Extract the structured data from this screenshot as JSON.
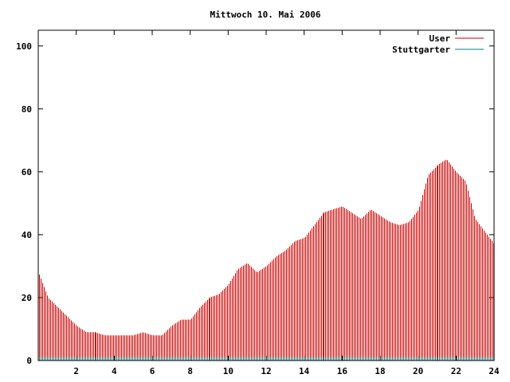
{
  "chart_data": {
    "type": "bar",
    "title": "Mittwoch 10. Mai 2006",
    "xlabel": "",
    "ylabel": "",
    "xlim": [
      0,
      24
    ],
    "ylim": [
      0,
      105
    ],
    "x_ticks": [
      "2",
      "4",
      "6",
      "8",
      "10",
      "12",
      "14",
      "16",
      "18",
      "20",
      "22",
      "24"
    ],
    "y_ticks": [
      "0",
      "20",
      "40",
      "60",
      "80",
      "100"
    ],
    "grid": false,
    "legend_position": "top-right",
    "bin_minutes": 5,
    "series": [
      {
        "name": "User",
        "color": "#cc0000",
        "x_hours": [
          0.0,
          0.5,
          1.0,
          1.5,
          2.0,
          2.5,
          3.0,
          3.5,
          4.0,
          4.5,
          5.0,
          5.5,
          6.0,
          6.5,
          7.0,
          7.5,
          8.0,
          8.5,
          9.0,
          9.5,
          10.0,
          10.5,
          11.0,
          11.5,
          12.0,
          12.5,
          13.0,
          13.5,
          14.0,
          14.5,
          15.0,
          15.5,
          16.0,
          16.5,
          17.0,
          17.5,
          18.0,
          18.5,
          19.0,
          19.5,
          20.0,
          20.5,
          21.0,
          21.5,
          22.0,
          22.5,
          23.0,
          23.5,
          24.0
        ],
        "values": [
          28,
          20,
          17,
          14,
          11,
          9,
          9,
          8,
          8,
          8,
          8,
          9,
          8,
          8,
          11,
          13,
          13,
          17,
          20,
          21,
          24,
          29,
          31,
          28,
          30,
          33,
          35,
          38,
          39,
          43,
          47,
          48,
          49,
          47,
          45,
          48,
          46,
          44,
          43,
          44,
          48,
          59,
          62,
          64,
          60,
          57,
          45,
          41,
          37
        ]
      },
      {
        "name": "Stuttgarter",
        "color": "#008080",
        "values": [
          1,
          1,
          1,
          1,
          1,
          1,
          1,
          1,
          1,
          1,
          1,
          1,
          1,
          1,
          1,
          1,
          1,
          1,
          1,
          1,
          1,
          1,
          1,
          1,
          1,
          1,
          1,
          1,
          1,
          1,
          1,
          1,
          1,
          1,
          1,
          1,
          1,
          1,
          1,
          1,
          1,
          1,
          1,
          1,
          1,
          1,
          1,
          1,
          1
        ]
      }
    ]
  }
}
